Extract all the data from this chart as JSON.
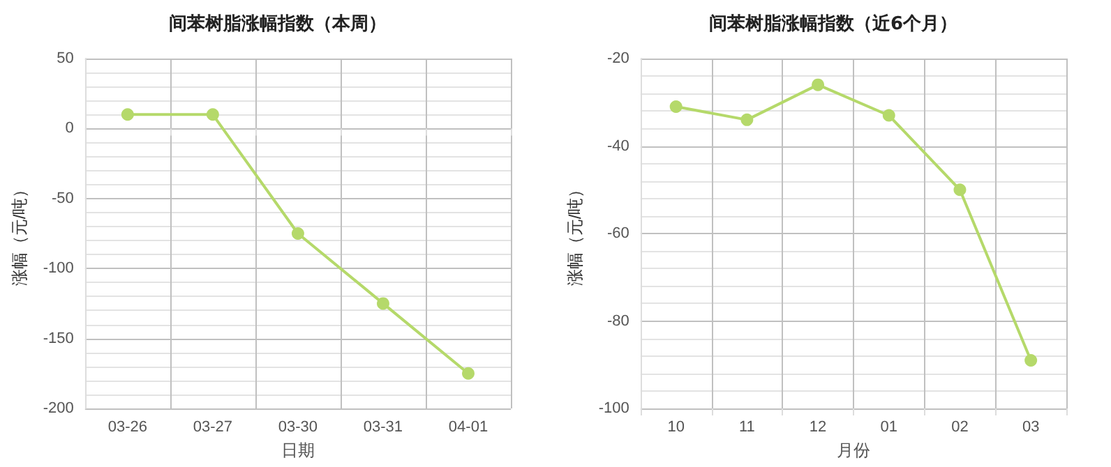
{
  "chart_data": [
    {
      "type": "line",
      "title": "间苯树脂涨幅指数（本周）",
      "xlabel": "日期",
      "ylabel": "涨幅（元/吨）",
      "categories": [
        "03-26",
        "03-27",
        "03-30",
        "03-31",
        "04-01"
      ],
      "series": [
        {
          "color": "#b5d96a",
          "values": [
            10,
            10,
            -75,
            -125,
            -175
          ]
        }
      ],
      "ylim": [
        -200,
        50
      ],
      "yticks": [
        -200,
        -150,
        -100,
        -50,
        0,
        50
      ],
      "grid": true,
      "marker": "circle",
      "line_style": "solid"
    },
    {
      "type": "line",
      "title": "间苯树脂涨幅指数（近6个月）",
      "xlabel": "月份",
      "ylabel": "涨幅（元/吨）",
      "categories": [
        "10",
        "11",
        "12",
        "01",
        "02",
        "03"
      ],
      "series": [
        {
          "color": "#b5d96a",
          "values": [
            -31,
            -34,
            -26,
            -33,
            -50,
            -89
          ]
        }
      ],
      "ylim": [
        -100,
        -20
      ],
      "yticks": [
        -100,
        -80,
        -60,
        -40,
        -20
      ],
      "grid": true,
      "marker": "circle",
      "line_style": "solid"
    }
  ]
}
